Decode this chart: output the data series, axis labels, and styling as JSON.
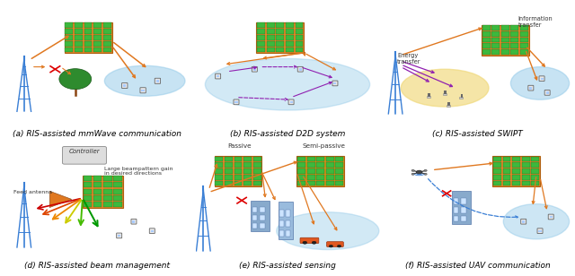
{
  "bg_color": "#ffffff",
  "panel_labels": [
    "(a) RIS-assisted mmWave communication",
    "(b) RIS-assisted D2D system",
    "(c) RIS-assisted SWIPT",
    "(d) RIS-assisted beam management",
    "(e) RIS-assisted sensing",
    "(f) RIS-assisted UAV communication"
  ],
  "label_color": "#000000",
  "label_fontsize": 6.5,
  "ris_color": "#e8882a",
  "ris_cell_color": "#3db83d",
  "ris_cell_border": "#1a6b1a",
  "ris_semi_color": "#d4921a",
  "tower_color": "#3a7fd5",
  "arrow_orange": "#e07820",
  "arrow_purple": "#9020b0",
  "arrow_dashed_blue": "#3a7fd5",
  "ellipse_blue": "#90c8e8",
  "ellipse_yellow": "#f0d878",
  "text_color": "#333333",
  "building_color": "#88aacc",
  "car_color": "#e05020",
  "drone_color": "#555555"
}
